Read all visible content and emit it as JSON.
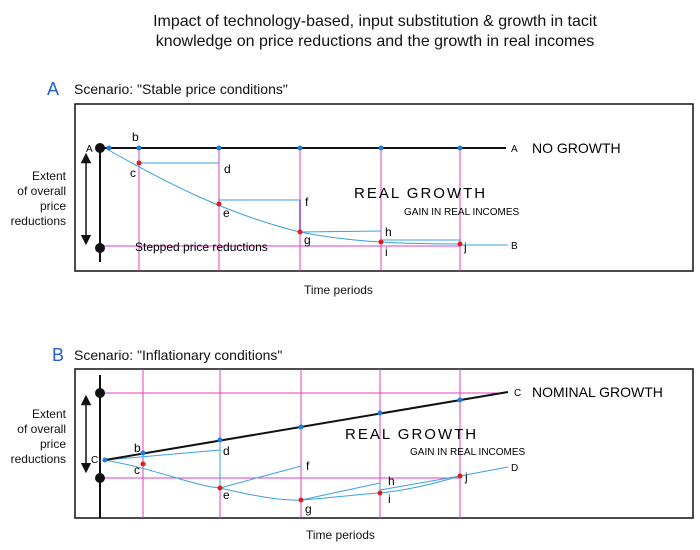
{
  "title_line1": "Impact of technology-based, input substitution & growth in tacit",
  "title_line2": "knowledge on price reductions and the growth in real incomes",
  "scenario_a": {
    "letter": "A",
    "label": "Scenario: \"Stable price conditions\"",
    "side_label": [
      "Extent",
      "of overall",
      "price",
      "reductions"
    ],
    "x_label": "Time periods",
    "line_start_label": "A",
    "line_end_label": "A",
    "no_growth_label": "NO GROWTH",
    "real_growth_label": "REAL GROWTH",
    "gain_label": "GAIN IN REAL INCOMES",
    "stepped_label": "Stepped price reductions",
    "end_b_label": "B",
    "points": [
      "b",
      "c",
      "d",
      "e",
      "f",
      "g",
      "h",
      "i",
      "j"
    ]
  },
  "scenario_b": {
    "letter": "B",
    "label": "Scenario: \"Inflationary conditions\"",
    "side_label": [
      "Extent",
      "of overall",
      "price",
      "reductions"
    ],
    "x_label": "Time periods",
    "line_start_label": "C",
    "line_end_label": "C",
    "nominal_growth_label": "NOMINAL GROWTH",
    "real_growth_label": "REAL GROWTH",
    "gain_label": "GAIN IN REAL INCOMES",
    "end_d_label": "D",
    "points": [
      "b",
      "c",
      "d",
      "e",
      "f",
      "g",
      "h",
      "i",
      "j"
    ]
  },
  "colors": {
    "scenario_letter": "#1f5fd0",
    "blue_line": "#3aa0e0",
    "pink_line": "#e040c0",
    "red_dot": "#e01c1c",
    "blue_dot": "#1a7fe0",
    "purple_line": "#8a3ae0"
  }
}
